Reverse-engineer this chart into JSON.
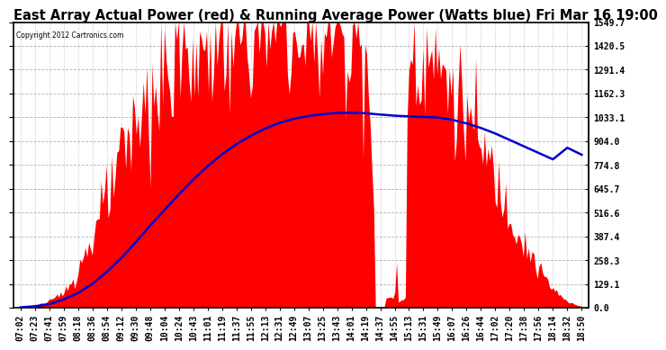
{
  "title": "East Array Actual Power (red) & Running Average Power (Watts blue) Fri Mar 16 19:00",
  "copyright": "Copyright 2012 Cartronics.com",
  "ymin": 0.0,
  "ymax": 1549.7,
  "yticks": [
    0.0,
    129.1,
    258.3,
    387.4,
    516.6,
    645.7,
    774.8,
    904.0,
    1033.1,
    1162.3,
    1291.4,
    1420.5,
    1549.7
  ],
  "bg_color": "#ffffff",
  "plot_bg_color": "#ffffff",
  "grid_color": "#aaaaaa",
  "red_color": "#ff0000",
  "blue_color": "#0000cc",
  "title_fontsize": 10.5,
  "tick_label_fontsize": 7,
  "x_times": [
    "07:02",
    "07:23",
    "07:41",
    "07:59",
    "08:18",
    "08:36",
    "08:54",
    "09:12",
    "09:30",
    "09:48",
    "10:04",
    "10:24",
    "10:43",
    "11:01",
    "11:19",
    "11:37",
    "11:55",
    "12:13",
    "12:31",
    "12:49",
    "13:07",
    "13:25",
    "13:43",
    "14:01",
    "14:19",
    "14:37",
    "14:55",
    "15:13",
    "15:31",
    "15:49",
    "16:07",
    "16:26",
    "16:44",
    "17:02",
    "17:20",
    "17:38",
    "17:56",
    "18:14",
    "18:32",
    "18:50"
  ],
  "running_avg": [
    2,
    8,
    20,
    45,
    80,
    130,
    195,
    270,
    355,
    445,
    530,
    615,
    695,
    768,
    832,
    887,
    933,
    972,
    1003,
    1025,
    1040,
    1050,
    1057,
    1058,
    1055,
    1048,
    1042,
    1038,
    1035,
    1032,
    1020,
    1000,
    975,
    945,
    910,
    875,
    840,
    805,
    868,
    830
  ]
}
